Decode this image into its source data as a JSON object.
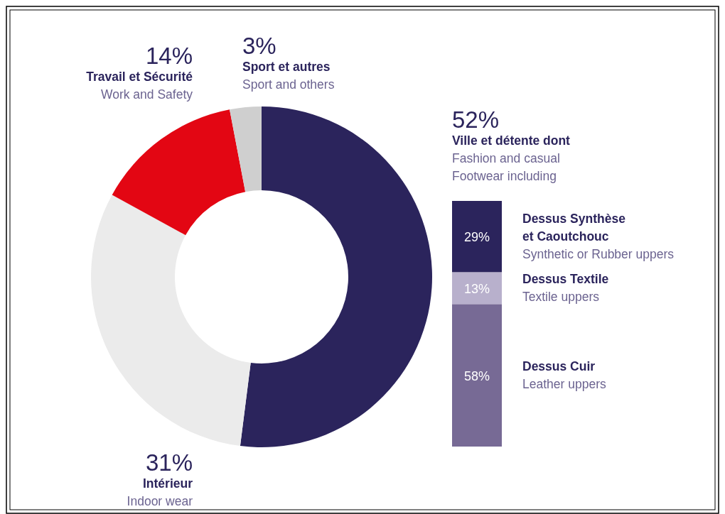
{
  "chart_data": [
    {
      "type": "donut",
      "categories": [
        "Ville et détente dont\nFashion and casual\nFootwear including",
        "Intérieur\nIndoor wear",
        "Travail et Sécurité\nWork and Safety",
        "Sport et autres\nSport and others"
      ],
      "values": [
        52,
        31,
        14,
        3
      ],
      "colors": [
        "#2b245c",
        "#ebebeb",
        "#e30613",
        "#cfcfcf"
      ],
      "value_labels": [
        "52%",
        "31%",
        "14%",
        "3%"
      ]
    },
    {
      "type": "bar",
      "stacked": true,
      "categories": [
        null
      ],
      "legend": "right",
      "series": [
        {
          "name": "Dessus Cuir\nLeather uppers",
          "color": "#776a95",
          "values": [
            58
          ],
          "value_labels": [
            "58%"
          ]
        },
        {
          "name": "Dessus Textile\nTextile uppers",
          "color": "#b8b0cc",
          "values": [
            13
          ],
          "value_labels": [
            "13%"
          ]
        },
        {
          "name": "Dessus Synthèse\net Caoutchouc\nSynthetic or Rubber uppers",
          "color": "#2b245c",
          "values": [
            29
          ],
          "value_labels": [
            "29%"
          ]
        }
      ]
    }
  ]
}
